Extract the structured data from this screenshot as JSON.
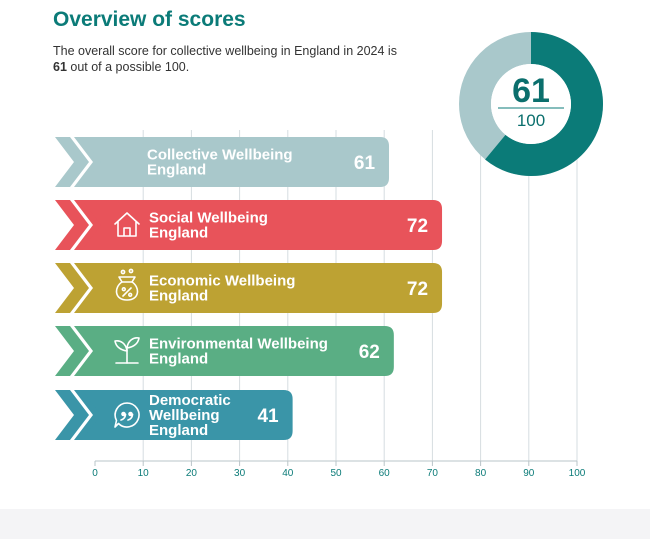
{
  "title": "Overview of scores",
  "subtitle": {
    "line1": "The overall score for collective wellbeing in England in 2024 is",
    "score": "61",
    "line2": " out of a possible 100."
  },
  "donut": {
    "value": 61,
    "max": 100,
    "value_label": "61",
    "max_label": "100",
    "colors": {
      "filled": "#0b7b78",
      "remainder": "#a9c8cb"
    }
  },
  "chart_data": {
    "type": "bar",
    "orientation": "horizontal",
    "categories": [
      {
        "lines": [
          "Collective Wellbeing",
          "England"
        ],
        "icon": "none",
        "color": "#a9c8cb"
      },
      {
        "lines": [
          "Social Wellbeing",
          "England"
        ],
        "icon": "house-icon",
        "color": "#e8535a"
      },
      {
        "lines": [
          "Economic Wellbeing",
          "England"
        ],
        "icon": "money-bag-percent-icon",
        "color": "#bda233"
      },
      {
        "lines": [
          "Environmental Wellbeing",
          "England"
        ],
        "icon": "seedling-icon",
        "color": "#5aae84"
      },
      {
        "lines": [
          "Democratic",
          "Wellbeing",
          "England"
        ],
        "icon": "speech-quote-icon",
        "color": "#3a95a8"
      }
    ],
    "values": [
      61,
      72,
      72,
      62,
      41
    ],
    "value_labels": [
      "61",
      "72",
      "72",
      "62",
      "41"
    ],
    "xlim": [
      0,
      100
    ],
    "xticks": [
      0,
      10,
      20,
      30,
      40,
      50,
      60,
      70,
      80,
      90,
      100
    ],
    "xtick_labels": [
      "0",
      "10",
      "20",
      "30",
      "40",
      "50",
      "60",
      "70",
      "80",
      "90",
      "100"
    ],
    "grid": true,
    "legend": "none"
  }
}
